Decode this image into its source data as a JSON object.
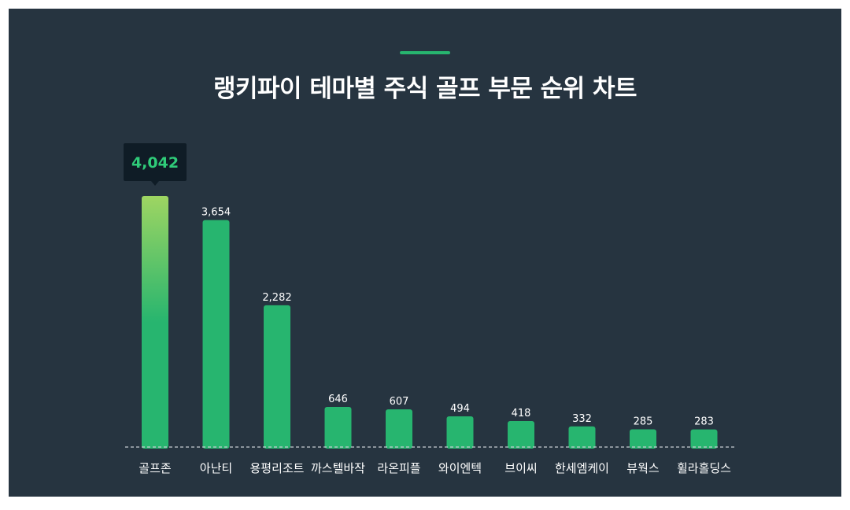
{
  "title": "랭키파이 테마별 주식 골프 부문 순위 차트",
  "colors": {
    "background": "#263440",
    "bar": "#27b56f",
    "highlight_top": "#9ed562",
    "accent": "#27b56f",
    "tooltip": "#0f1c26"
  },
  "chart_data": {
    "type": "bar",
    "title": "랭키파이 테마별 주식 골프 부문 순위 차트",
    "categories": [
      "골프존",
      "아난티",
      "용평리조트",
      "까스텔바작",
      "라온피플",
      "와이엔텍",
      "브이씨",
      "한세엠케이",
      "뷰웍스",
      "휠라홀딩스"
    ],
    "values": [
      4042,
      3654,
      2282,
      646,
      607,
      494,
      418,
      332,
      285,
      283
    ],
    "value_labels": [
      "4,042",
      "3,654",
      "2,282",
      "646",
      "607",
      "494",
      "418",
      "332",
      "285",
      "283"
    ],
    "highlighted_index": 0,
    "ylim": [
      0,
      4042
    ],
    "grid": false,
    "legend": "none"
  }
}
